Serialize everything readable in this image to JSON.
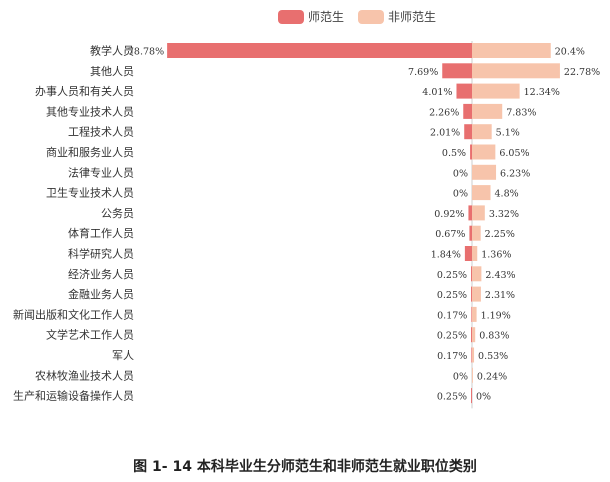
{
  "caption": "图 1- 14  本科毕业生分师范生和非师范生就业职位类别",
  "colors": {
    "normal": "#e86f6f",
    "non_normal": "#f7c4ab"
  },
  "chart_data": {
    "type": "bar",
    "orientation": "diverging-horizontal",
    "legend_position": "top-center",
    "categories": [
      "教学人员",
      "其他人员",
      "办事人员和有关人员",
      "其他专业技术人员",
      "工程技术人员",
      "商业和服务业人员",
      "法律专业人员",
      "卫生专业技术人员",
      "公务员",
      "体育工作人员",
      "科学研究人员",
      "经济业务人员",
      "金融业务人员",
      "新闻出版和文化工作人员",
      "文学艺术工作人员",
      "军人",
      "农林牧渔业技术人员",
      "生产和运输设备操作人员"
    ],
    "series": [
      {
        "name": "师范生",
        "values": [
          78.78,
          7.69,
          4.01,
          2.26,
          2.01,
          0.5,
          0,
          0,
          0.92,
          0.67,
          1.84,
          0.25,
          0.25,
          0.17,
          0.25,
          0.17,
          0,
          0.25
        ],
        "labels": [
          "78.78%",
          "7.69%",
          "4.01%",
          "2.26%",
          "2.01%",
          "0.5%",
          "0%",
          "0%",
          "0.92%",
          "0.67%",
          "1.84%",
          "0.25%",
          "0.25%",
          "0.17%",
          "0.25%",
          "0.17%",
          "0%",
          "0.25%"
        ]
      },
      {
        "name": "非师范生",
        "values": [
          20.4,
          22.78,
          12.34,
          7.83,
          5.1,
          6.05,
          6.23,
          4.8,
          3.32,
          2.25,
          1.36,
          2.43,
          2.31,
          1.19,
          0.83,
          0.53,
          0.24,
          0
        ],
        "labels": [
          "20.4%",
          "22.78%",
          "12.34%",
          "7.83%",
          "5.1%",
          "6.05%",
          "6.23%",
          "4.8%",
          "3.32%",
          "2.25%",
          "1.36%",
          "2.43%",
          "2.31%",
          "1.19%",
          "0.83%",
          "0.53%",
          "0.24%",
          "0%"
        ]
      }
    ]
  }
}
